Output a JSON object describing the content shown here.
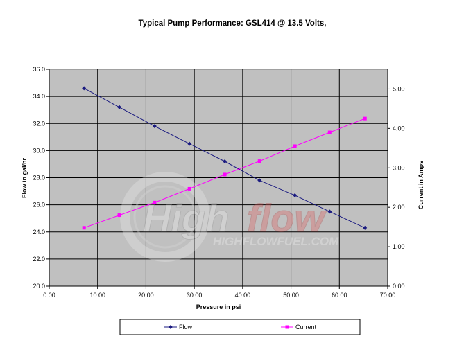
{
  "chart_data": {
    "type": "line",
    "title": "Typical Pump Performance:  GSL414 @ 13.5 Volts,",
    "xlabel": "Pressure in psi",
    "ylabel": "Flow in gal/hr",
    "y2label": "Current in Amps",
    "xlim": [
      0,
      70
    ],
    "ylim": [
      20,
      36
    ],
    "y2lim": [
      0,
      5.5
    ],
    "x_ticks": [
      "0.00",
      "10.00",
      "20.00",
      "30.00",
      "40.00",
      "50.00",
      "60.00",
      "70.00"
    ],
    "y_ticks": [
      "20.0",
      "22.0",
      "24.0",
      "26.0",
      "28.0",
      "30.0",
      "32.0",
      "34.0",
      "36.0"
    ],
    "y2_ticks": [
      "0.00",
      "1.00",
      "2.00",
      "3.00",
      "4.00",
      "5.00"
    ],
    "grid": true,
    "legend": "bottom",
    "series": [
      {
        "name": "Flow",
        "axis": "left",
        "color": "#1a1a80",
        "marker": "diamond",
        "x": [
          7.2,
          14.5,
          21.8,
          29.0,
          36.3,
          43.5,
          50.8,
          58.0,
          65.3
        ],
        "values": [
          34.6,
          33.2,
          31.8,
          30.5,
          29.2,
          27.8,
          26.7,
          25.5,
          24.3
        ]
      },
      {
        "name": "Current",
        "axis": "right",
        "color": "#ff00ff",
        "marker": "square",
        "x": [
          7.2,
          14.5,
          21.8,
          29.0,
          36.3,
          43.5,
          50.8,
          58.0,
          65.3
        ],
        "values": [
          1.48,
          1.8,
          2.12,
          2.47,
          2.83,
          3.17,
          3.55,
          3.9,
          4.25
        ]
      }
    ],
    "watermark": {
      "logo_text": "Highflow",
      "site_text": "HIGHFLOWFUEL.COM"
    }
  }
}
